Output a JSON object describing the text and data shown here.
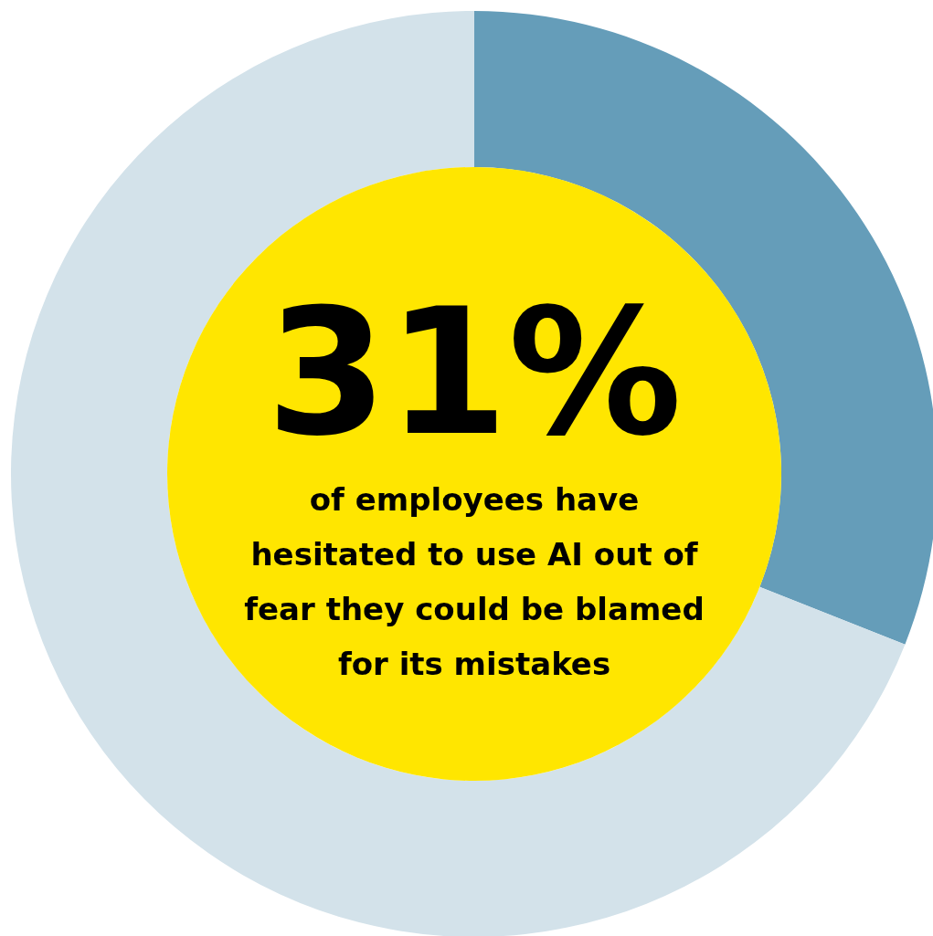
{
  "chart_data": {
    "type": "donut",
    "categories": [
      null,
      null
    ],
    "values": [
      31,
      69
    ],
    "colors": [
      "#659db9",
      "#d3e2ea"
    ],
    "annotations": [
      "31%",
      "of employees have hesitated to use AI out of fear they could be blamed for its mistakes"
    ]
  }
}
